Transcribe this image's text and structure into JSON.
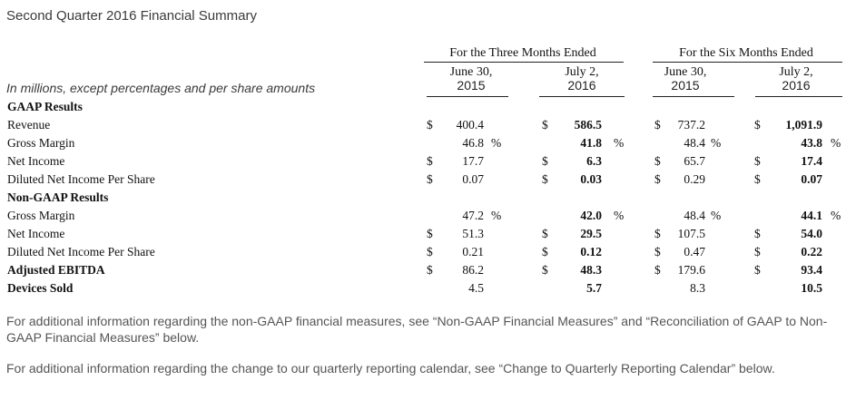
{
  "title": "Second Quarter 2016 Financial Summary",
  "header": {
    "group_three": "For the Three Months Ended",
    "group_six": "For the Six Months Ended",
    "columns": [
      {
        "date": "June 30,",
        "year": "2015"
      },
      {
        "date": "July 2,",
        "year": "2016"
      },
      {
        "date": "June 30,",
        "year": "2015"
      },
      {
        "date": "July 2,",
        "year": "2016"
      }
    ],
    "caption": "In millions, except percentages and per share amounts"
  },
  "rows": [
    {
      "label": "GAAP Results",
      "section": true
    },
    {
      "label": "Revenue",
      "values": [
        {
          "cur": "$",
          "v": "400.4"
        },
        {
          "cur": "$",
          "v": "586.5"
        },
        {
          "cur": "$",
          "v": "737.2"
        },
        {
          "cur": "$",
          "v": "1,091.9"
        }
      ]
    },
    {
      "label": "Gross Margin",
      "values": [
        {
          "v": "46.8",
          "pct": "%"
        },
        {
          "v": "41.8",
          "pct": "%"
        },
        {
          "v": "48.4",
          "pct": "%"
        },
        {
          "v": "43.8",
          "pct": "%"
        }
      ]
    },
    {
      "label": "Net Income",
      "values": [
        {
          "cur": "$",
          "v": "17.7"
        },
        {
          "cur": "$",
          "v": "6.3"
        },
        {
          "cur": "$",
          "v": "65.7"
        },
        {
          "cur": "$",
          "v": "17.4"
        }
      ]
    },
    {
      "label": "Diluted Net Income Per Share",
      "values": [
        {
          "cur": "$",
          "v": "0.07"
        },
        {
          "cur": "$",
          "v": "0.03"
        },
        {
          "cur": "$",
          "v": "0.29"
        },
        {
          "cur": "$",
          "v": "0.07"
        }
      ]
    },
    {
      "label": "Non-GAAP Results",
      "section": true
    },
    {
      "label": "Gross Margin",
      "values": [
        {
          "v": "47.2",
          "pct": "%"
        },
        {
          "v": "42.0",
          "pct": "%"
        },
        {
          "v": "48.4",
          "pct": "%"
        },
        {
          "v": "44.1",
          "pct": "%"
        }
      ]
    },
    {
      "label": "Net Income",
      "values": [
        {
          "cur": "$",
          "v": "51.3"
        },
        {
          "cur": "$",
          "v": "29.5"
        },
        {
          "cur": "$",
          "v": "107.5"
        },
        {
          "cur": "$",
          "v": "54.0"
        }
      ]
    },
    {
      "label": "Diluted Net Income Per Share",
      "values": [
        {
          "cur": "$",
          "v": "0.21"
        },
        {
          "cur": "$",
          "v": "0.12"
        },
        {
          "cur": "$",
          "v": "0.47"
        },
        {
          "cur": "$",
          "v": "0.22"
        }
      ]
    },
    {
      "label": "Adjusted EBITDA",
      "bold_label": true,
      "values": [
        {
          "cur": "$",
          "v": "86.2"
        },
        {
          "cur": "$",
          "v": "48.3"
        },
        {
          "cur": "$",
          "v": "179.6"
        },
        {
          "cur": "$",
          "v": "93.4"
        }
      ]
    },
    {
      "label": "Devices Sold",
      "bold_label": true,
      "values": [
        {
          "v": "4.5"
        },
        {
          "v": "5.7"
        },
        {
          "v": "8.3"
        },
        {
          "v": "10.5"
        }
      ]
    }
  ],
  "notes": [
    "For additional information regarding the non-GAAP financial measures, see “Non-GAAP Financial Measures” and “Reconciliation of GAAP to Non-GAAP Financial Measures” below.",
    "For additional information regarding the change to our quarterly reporting calendar, see “Change to Quarterly Reporting Calendar” below."
  ]
}
